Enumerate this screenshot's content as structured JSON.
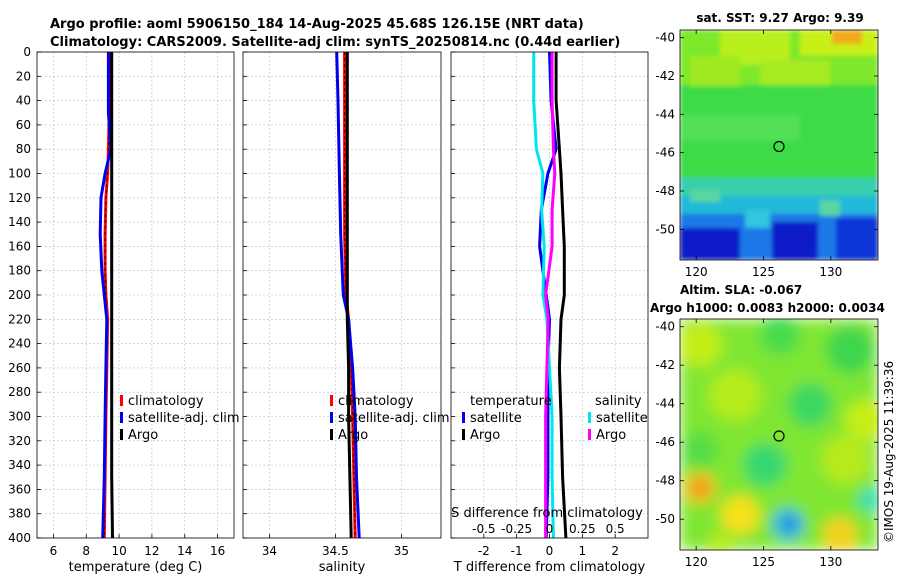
{
  "figure": {
    "title_line1": "Argo profile: aoml 5906150_184 14-Aug-2025 45.68S 126.15E (NRT data)",
    "title_line2": "Climatology: CARS2009. Satellite-adj clim: synTS_20250814.nc (0.44d earlier)",
    "watermark": "©IMOS 19-Aug-2025 11:39:36"
  },
  "colors": {
    "climatology": "#ff0000",
    "satellite": "#0000ee",
    "argo": "#000000",
    "sat_temp": "#0000ee",
    "sat_sal": "#00e5ee",
    "argo_sal": "#ff00ff"
  },
  "chart_data": [
    {
      "type": "line",
      "name": "temperature",
      "xlabel": "temperature (deg C)",
      "ylabel": "",
      "xlim": [
        5,
        17
      ],
      "ylim": [
        0,
        400
      ],
      "xticks": [
        6,
        8,
        10,
        12,
        14,
        16
      ],
      "yticks": [
        0,
        20,
        40,
        60,
        80,
        100,
        120,
        140,
        160,
        180,
        200,
        220,
        240,
        260,
        280,
        300,
        320,
        340,
        360,
        380,
        400
      ],
      "legend": [
        "climatology",
        "satellite-adj. clim",
        "Argo"
      ],
      "depth": [
        0,
        50,
        80,
        100,
        120,
        150,
        180,
        200,
        220,
        260,
        300,
        350,
        400
      ],
      "series": [
        {
          "name": "climatology",
          "color": "#ff0000",
          "values": [
            9.4,
            9.4,
            9.35,
            9.3,
            9.2,
            9.15,
            9.15,
            9.2,
            9.3,
            9.25,
            9.2,
            9.15,
            9.1
          ]
        },
        {
          "name": "satellite-adj. clim",
          "color": "#0000ee",
          "values": [
            9.35,
            9.35,
            9.5,
            9.15,
            8.9,
            8.85,
            8.95,
            9.1,
            9.25,
            9.2,
            9.15,
            9.1,
            9.0
          ]
        },
        {
          "name": "Argo",
          "color": "#000000",
          "values": [
            9.55,
            9.55,
            9.55,
            9.55,
            9.55,
            9.55,
            9.55,
            9.55,
            9.55,
            9.55,
            9.55,
            9.55,
            9.6
          ]
        }
      ]
    },
    {
      "type": "line",
      "name": "salinity",
      "xlabel": "salinity",
      "xlim": [
        33.8,
        35.3
      ],
      "ylim": [
        0,
        400
      ],
      "xticks": [
        34,
        34.5,
        35
      ],
      "legend": [
        "climatology",
        "satellite-adj. clim",
        "Argo"
      ],
      "depth": [
        0,
        40,
        100,
        150,
        200,
        220,
        260,
        300,
        350,
        400
      ],
      "series": [
        {
          "name": "climatology",
          "color": "#ff0000",
          "values": [
            34.57,
            34.57,
            34.57,
            34.57,
            34.58,
            34.6,
            34.62,
            34.63,
            34.64,
            34.65
          ]
        },
        {
          "name": "satellite-adj. clim",
          "color": "#0000ee",
          "values": [
            34.51,
            34.52,
            34.53,
            34.54,
            34.56,
            34.6,
            34.63,
            34.65,
            34.66,
            34.68
          ]
        },
        {
          "name": "Argo",
          "color": "#000000",
          "values": [
            34.59,
            34.59,
            34.59,
            34.59,
            34.59,
            34.59,
            34.6,
            34.6,
            34.61,
            34.62
          ]
        }
      ]
    },
    {
      "type": "line",
      "name": "difference",
      "xlabel": "T difference from climatology",
      "top_label": "S difference from climatology",
      "xlim": [
        -3,
        3
      ],
      "ylim": [
        0,
        400
      ],
      "xticks": [
        -2,
        -1,
        0,
        1,
        2
      ],
      "xtick_labels": [
        "-2",
        "-1",
        "0",
        "1",
        "2"
      ],
      "s_xticks": [
        -0.5,
        -0.25,
        0,
        0.25,
        0.5
      ],
      "s_xtick_labels": [
        "-0.5",
        "-0.25",
        "0",
        "0.25",
        "0.5"
      ],
      "legend_temperature_title": "temperature",
      "legend_salinity_title": "salinity",
      "legend_temperature": [
        "satellite",
        "Argo"
      ],
      "legend_salinity": [
        "satellite",
        "Argo"
      ],
      "depth": [
        0,
        40,
        80,
        100,
        130,
        160,
        200,
        220,
        260,
        300,
        350,
        400
      ],
      "series": [
        {
          "name": "T satellite",
          "color": "#0000ee",
          "values": [
            0.0,
            0.05,
            0.2,
            -0.05,
            -0.25,
            -0.3,
            -0.1,
            0.0,
            -0.05,
            -0.05,
            -0.05,
            -0.1
          ]
        },
        {
          "name": "T Argo",
          "color": "#000000",
          "values": [
            0.2,
            0.2,
            0.3,
            0.35,
            0.4,
            0.45,
            0.45,
            0.35,
            0.3,
            0.35,
            0.4,
            0.5
          ]
        },
        {
          "name": "S satellite",
          "color": "#00e5ee",
          "values": [
            -0.12,
            -0.12,
            -0.1,
            -0.05,
            -0.06,
            -0.04,
            -0.05,
            -0.02,
            0.0,
            0.02,
            0.02,
            0.03
          ]
        },
        {
          "name": "S Argo",
          "color": "#ff00ff",
          "values": [
            0.02,
            0.02,
            0.03,
            0.04,
            0.02,
            0.02,
            -0.03,
            -0.01,
            -0.02,
            -0.03,
            -0.03,
            -0.03
          ]
        }
      ]
    },
    {
      "type": "heatmap",
      "name": "sst_map",
      "title": "sat. SST: 9.27 Argo: 9.39",
      "xlim": [
        118.8,
        133.5
      ],
      "ylim": [
        -51.6,
        -39.6
      ],
      "xticks": [
        120,
        125,
        130
      ],
      "yticks": [
        -40,
        -42,
        -44,
        -46,
        -48,
        -50
      ],
      "ytick_labels": [
        "-40",
        "-42",
        "-44",
        "-46",
        "-48",
        "-50"
      ],
      "marker": [
        126.15,
        -45.68
      ]
    },
    {
      "type": "heatmap",
      "name": "sla_map",
      "title": "Altim. SLA: -0.067",
      "subtitle": "Argo h1000: 0.0083 h2000: 0.0034",
      "xlim": [
        118.8,
        133.5
      ],
      "ylim": [
        -51.6,
        -39.6
      ],
      "xticks": [
        120,
        125,
        130
      ],
      "yticks": [
        -40,
        -42,
        -44,
        -46,
        -48,
        -50
      ],
      "ytick_labels": [
        "-40",
        "-42",
        "-44",
        "-46",
        "-48",
        "-50"
      ],
      "marker": [
        126.15,
        -45.68
      ]
    }
  ]
}
